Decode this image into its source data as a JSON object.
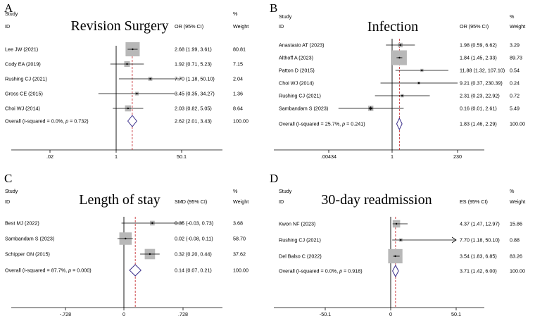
{
  "chart_data": [
    {
      "type": "forest",
      "panel_label": "A",
      "title": "Revision Surgery",
      "col_study": "Study",
      "col_id": "ID",
      "col_effect": "OR (95% CI)",
      "col_pct": "%",
      "col_weight": "Weight",
      "scale": "log",
      "xlim": [
        0.02,
        50.1
      ],
      "xticks": [
        "0.02",
        "1",
        "50.1"
      ],
      "tick_labels": [
        ".02",
        "1",
        "50.1"
      ],
      "null_value": 1,
      "pooled_estimate": 2.62,
      "studies": [
        {
          "label": "Lee JW (2021)",
          "est": 2.68,
          "lo": 1.99,
          "hi": 3.61,
          "ci_text": "2.68 (1.99, 3.61)",
          "weight_value": 80.81,
          "weight": "80.81",
          "arrow": false
        },
        {
          "label": "Cody EA (2019)",
          "est": 1.92,
          "lo": 0.71,
          "hi": 5.23,
          "ci_text": "1.92 (0.71, 5.23)",
          "weight_value": 7.15,
          "weight": "7.15",
          "arrow": false
        },
        {
          "label": "Rushing CJ (2021)",
          "est": 7.7,
          "lo": 1.18,
          "hi": 50.1,
          "ci_text": "7.70 (1.18, 50.10)",
          "weight_value": 2.04,
          "weight": "2.04",
          "arrow": false
        },
        {
          "label": "Gross CE (2015)",
          "est": 3.45,
          "lo": 0.35,
          "hi": 34.27,
          "ci_text": "3.45 (0.35, 34.27)",
          "weight_value": 1.36,
          "weight": "1.36",
          "arrow": false
        },
        {
          "label": "Choi WJ (2014)",
          "est": 2.03,
          "lo": 0.82,
          "hi": 5.05,
          "ci_text": "2.03 (0.82, 5.05)",
          "weight_value": 8.64,
          "weight": "8.64",
          "arrow": false
        }
      ],
      "overall": {
        "label_prefix": "Overall  (I-squared = 0.0%, ",
        "p_sym": "p",
        "label_suffix": " = 0.732)",
        "est": 2.62,
        "lo": 2.01,
        "hi": 3.43,
        "ci_text": "2.62 (2.01, 3.43)",
        "weight": "100.00"
      }
    },
    {
      "type": "forest",
      "panel_label": "B",
      "title": "Infection",
      "col_study": "Study",
      "col_id": "ID",
      "col_effect": "OR (95% CI)",
      "col_pct": "%",
      "col_weight": "Weight",
      "scale": "log",
      "xlim": [
        0.00434,
        230
      ],
      "xticks": [
        "0.00434",
        "1",
        "230"
      ],
      "tick_labels": [
        ".00434",
        "1",
        "230"
      ],
      "null_value": 1,
      "pooled_estimate": 1.83,
      "studies": [
        {
          "label": "Anastasio AT (2023)",
          "est": 1.98,
          "lo": 0.59,
          "hi": 6.62,
          "ci_text": "1.98 (0.59, 6.62)",
          "weight_value": 3.29,
          "weight": "3.29",
          "arrow": false
        },
        {
          "label": "Althoff A (2023)",
          "est": 1.84,
          "lo": 1.45,
          "hi": 2.33,
          "ci_text": "1.84 (1.45, 2.33)",
          "weight_value": 89.73,
          "weight": "89.73",
          "arrow": false
        },
        {
          "label": "Patton D (2015)",
          "est": 11.88,
          "lo": 1.32,
          "hi": 107.1,
          "ci_text": "11.88 (1.32, 107.10)",
          "weight_value": 0.54,
          "weight": "0.54",
          "arrow": false
        },
        {
          "label": "Choi WJ (2014)",
          "est": 9.21,
          "lo": 0.37,
          "hi": 230.39,
          "ci_text": "9.21 (0.37, 230.39)",
          "weight_value": 0.24,
          "weight": "0.24",
          "arrow": false
        },
        {
          "label": "Rushing CJ (2021)",
          "est": 2.31,
          "lo": 0.23,
          "hi": 22.92,
          "ci_text": "2.31 (0.23, 22.92)",
          "weight_value": 0.72,
          "weight": "0.72",
          "arrow": false
        },
        {
          "label": "Sambandam S (2023)",
          "est": 0.16,
          "lo": 0.01,
          "hi": 2.61,
          "ci_text": "0.16 (0.01, 2.61)",
          "weight_value": 5.49,
          "weight": "5.49",
          "arrow": false
        }
      ],
      "overall": {
        "label_prefix": "Overall  (I-squared = 25.7%, ",
        "p_sym": "p",
        "label_suffix": " = 0.241)",
        "est": 1.83,
        "lo": 1.46,
        "hi": 2.29,
        "ci_text": "1.83 (1.46, 2.29)",
        "weight": "100.00"
      }
    },
    {
      "type": "forest",
      "panel_label": "C",
      "title": "Length of stay",
      "col_study": "Study",
      "col_id": "ID",
      "col_effect": "SMD (95% CI)",
      "col_pct": "%",
      "col_weight": "Weight",
      "scale": "linear",
      "xlim": [
        -0.728,
        0.728
      ],
      "xticks": [
        "-0.728",
        "0",
        "0.728"
      ],
      "tick_labels": [
        "-.728",
        "0",
        ".728"
      ],
      "null_value": 0,
      "pooled_estimate": 0.14,
      "studies": [
        {
          "label": "Best MJ (2022)",
          "est": 0.35,
          "lo": -0.03,
          "hi": 0.73,
          "ci_text": "0.35 (-0.03, 0.73)",
          "weight_value": 3.68,
          "weight": "3.68",
          "arrow": false
        },
        {
          "label": "Sambandam S (2023)",
          "est": 0.02,
          "lo": -0.08,
          "hi": 0.11,
          "ci_text": "0.02 (-0.08, 0.11)",
          "weight_value": 58.7,
          "weight": "58.70",
          "arrow": false
        },
        {
          "label": "Schipper ON (2015)",
          "est": 0.32,
          "lo": 0.2,
          "hi": 0.44,
          "ci_text": "0.32 (0.20, 0.44)",
          "weight_value": 37.62,
          "weight": "37.62",
          "arrow": false
        }
      ],
      "overall": {
        "label_prefix": "Overall  (I-squared = 87.7%, ",
        "p_sym": "p",
        "label_suffix": " = 0.000)",
        "est": 0.14,
        "lo": 0.07,
        "hi": 0.21,
        "ci_text": "0.14 (0.07, 0.21)",
        "weight": "100.00"
      }
    },
    {
      "type": "forest",
      "panel_label": "D",
      "title": "30-day readmission",
      "col_study": "Study",
      "col_id": "ID",
      "col_effect": "ES (95% CI)",
      "col_pct": "%",
      "col_weight": "Weight",
      "scale": "linear",
      "xlim": [
        -50.1,
        50.1
      ],
      "xticks": [
        "-50.1",
        "0",
        "50.1"
      ],
      "tick_labels": [
        "-50.1",
        "0",
        "50.1"
      ],
      "null_value": 0,
      "pooled_estimate": 3.71,
      "studies": [
        {
          "label": "Kwon NF (2023)",
          "est": 4.37,
          "lo": 1.47,
          "hi": 12.97,
          "ci_text": "4.37 (1.47, 12.97)",
          "weight_value": 15.86,
          "weight": "15.86",
          "arrow": false
        },
        {
          "label": "Rushing CJ (2021)",
          "est": 7.7,
          "lo": 1.18,
          "hi": 50.1,
          "ci_text": "7.70 (1.18, 50.10)",
          "weight_value": 0.88,
          "weight": "0.88",
          "arrow": true
        },
        {
          "label": "Del Balso C (2022)",
          "est": 3.54,
          "lo": 1.83,
          "hi": 6.85,
          "ci_text": "3.54 (1.83, 6.85)",
          "weight_value": 83.26,
          "weight": "83.26",
          "arrow": false
        }
      ],
      "overall": {
        "label_prefix": "Overall  (I-squared = 0.0%, ",
        "p_sym": "p",
        "label_suffix": " = 0.918)",
        "est": 3.71,
        "lo": 1.42,
        "hi": 6.0,
        "ci_text": "3.71 (1.42, 6.00)",
        "weight": "100.00"
      }
    }
  ]
}
